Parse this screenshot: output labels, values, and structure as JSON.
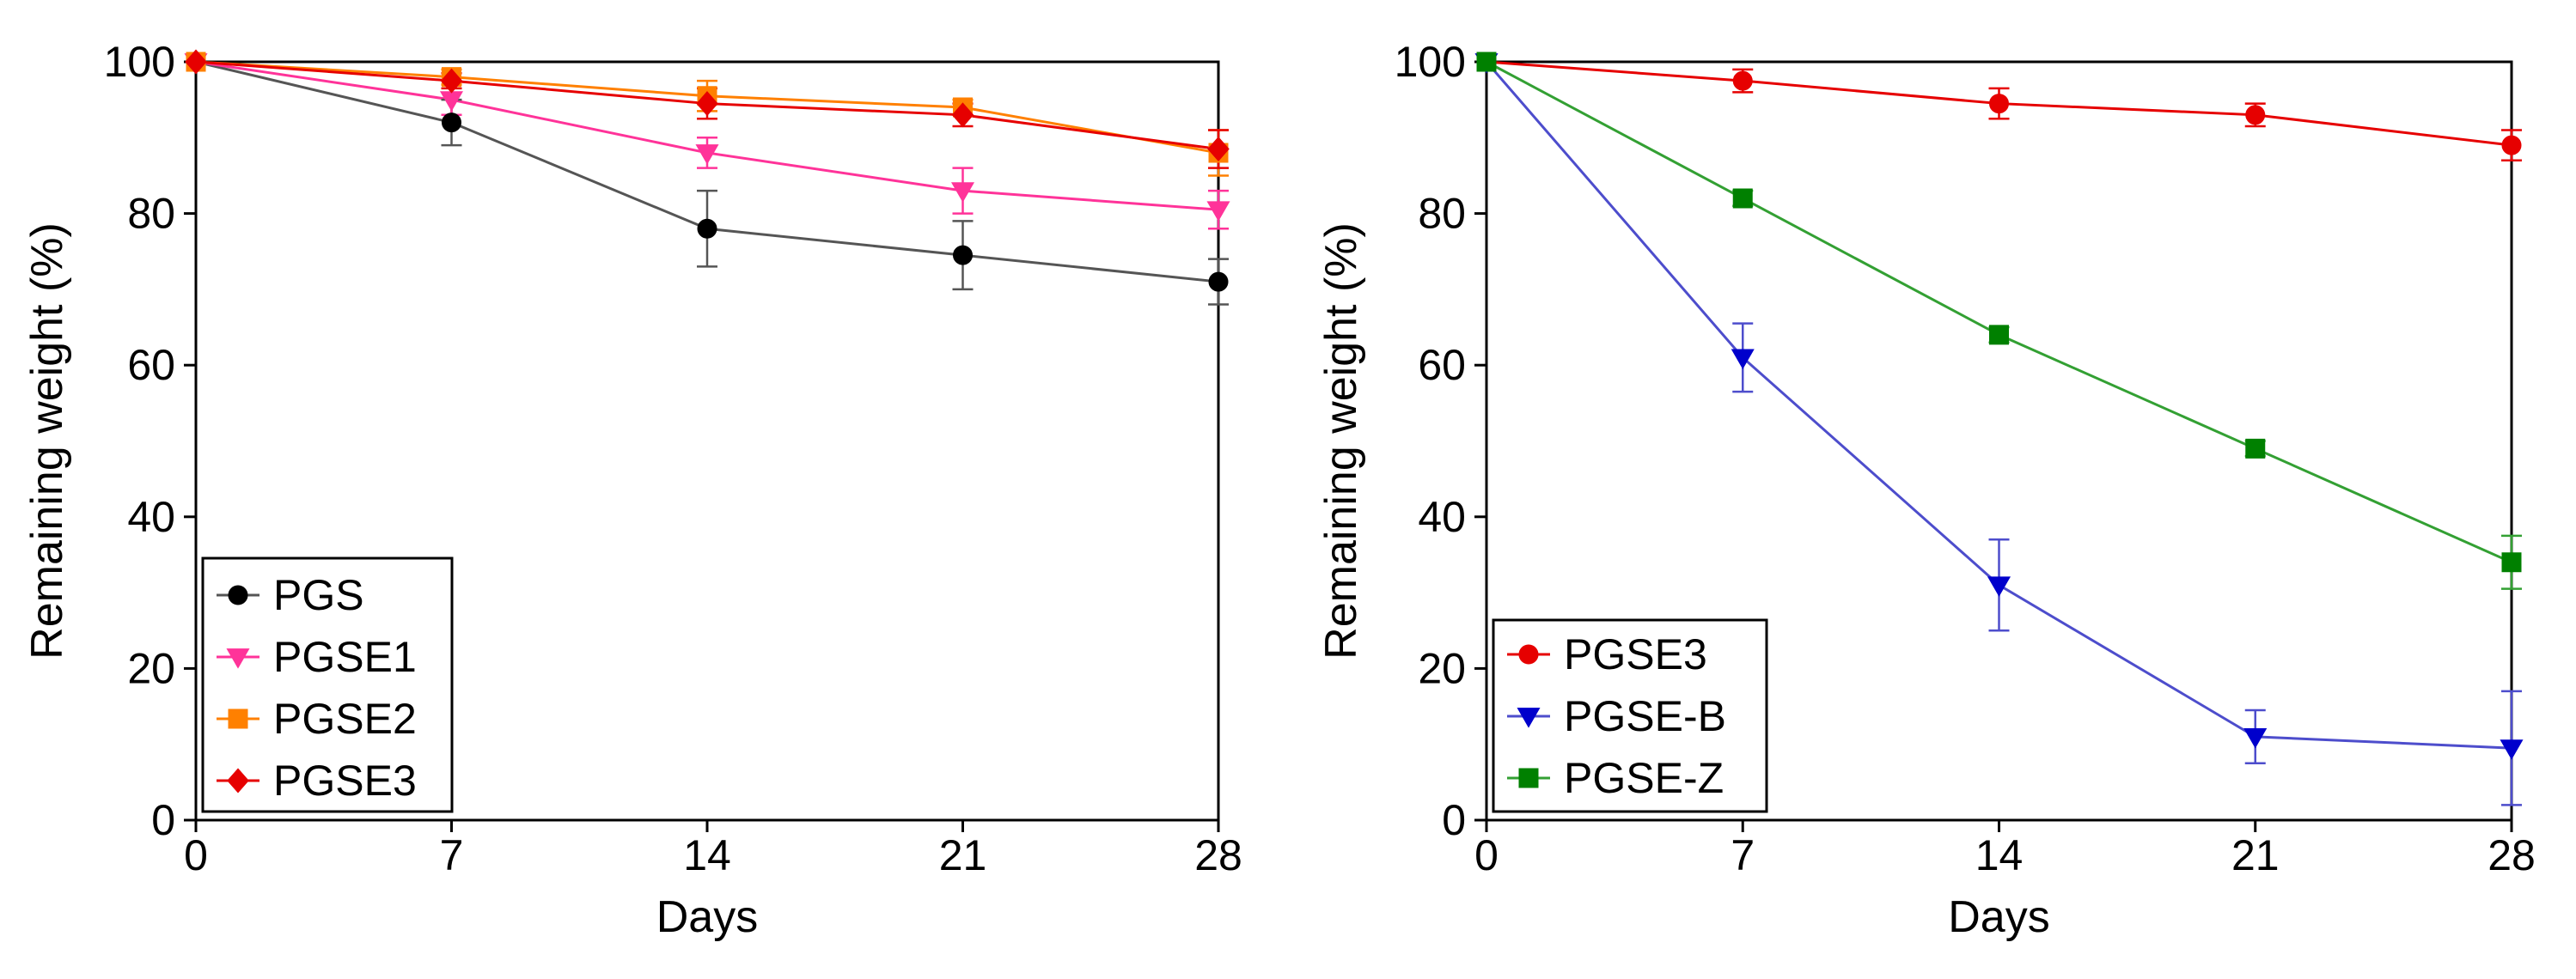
{
  "chart_data": [
    {
      "type": "line",
      "xlabel": "Days",
      "ylabel": "Remaining weight (%)",
      "xlim": [
        0,
        28
      ],
      "ylim": [
        0,
        100
      ],
      "xticks": [
        "0",
        "7",
        "14",
        "21",
        "28"
      ],
      "yticks": [
        "0",
        "20",
        "40",
        "60",
        "80",
        "100"
      ],
      "legend_position": "bottom-left",
      "grid": false,
      "x": [
        0,
        7,
        14,
        21,
        28
      ],
      "series": [
        {
          "name": "PGS",
          "marker": "circle",
          "color": "#000000",
          "line_color": "#555555",
          "values": [
            100,
            92,
            78,
            74.5,
            71
          ],
          "errors": [
            0,
            3,
            5,
            4.5,
            3
          ]
        },
        {
          "name": "PGSE1",
          "marker": "triangle-down",
          "color": "#ff3399",
          "line_color": "#ff3399",
          "values": [
            100,
            95,
            88,
            83,
            80.5
          ],
          "errors": [
            0,
            2,
            2,
            3,
            2.5
          ]
        },
        {
          "name": "PGSE2",
          "marker": "square",
          "color": "#ff8000",
          "line_color": "#ff8000",
          "values": [
            100,
            98,
            95.5,
            94,
            88
          ],
          "errors": [
            0,
            1,
            2,
            1,
            3
          ]
        },
        {
          "name": "PGSE3",
          "marker": "diamond",
          "color": "#e60000",
          "line_color": "#e60000",
          "values": [
            100,
            97.5,
            94.5,
            93,
            88.5
          ],
          "errors": [
            0,
            1,
            2,
            1.5,
            2.5
          ]
        }
      ]
    },
    {
      "type": "line",
      "xlabel": "Days",
      "ylabel": "Remaining weight (%)",
      "xlim": [
        0,
        28
      ],
      "ylim": [
        0,
        100
      ],
      "xticks": [
        "0",
        "7",
        "14",
        "21",
        "28"
      ],
      "yticks": [
        "0",
        "20",
        "40",
        "60",
        "80",
        "100"
      ],
      "legend_position": "bottom-left",
      "grid": false,
      "x": [
        0,
        7,
        14,
        21,
        28
      ],
      "series": [
        {
          "name": "PGSE3",
          "marker": "circle",
          "color": "#e60000",
          "line_color": "#e60000",
          "values": [
            100,
            97.5,
            94.5,
            93,
            89
          ],
          "errors": [
            0,
            1.5,
            2,
            1.5,
            2
          ]
        },
        {
          "name": "PGSE-B",
          "marker": "triangle-down",
          "color": "#0000cc",
          "line_color": "#4d4dcc",
          "values": [
            100,
            61,
            31,
            11,
            9.5
          ],
          "errors": [
            0,
            4.5,
            6,
            3.5,
            7.5
          ]
        },
        {
          "name": "PGSE-Z",
          "marker": "square",
          "color": "#008000",
          "line_color": "#33a033",
          "values": [
            100,
            82,
            64,
            49,
            34
          ],
          "errors": [
            0,
            1,
            1,
            1,
            3.5
          ]
        }
      ]
    }
  ]
}
